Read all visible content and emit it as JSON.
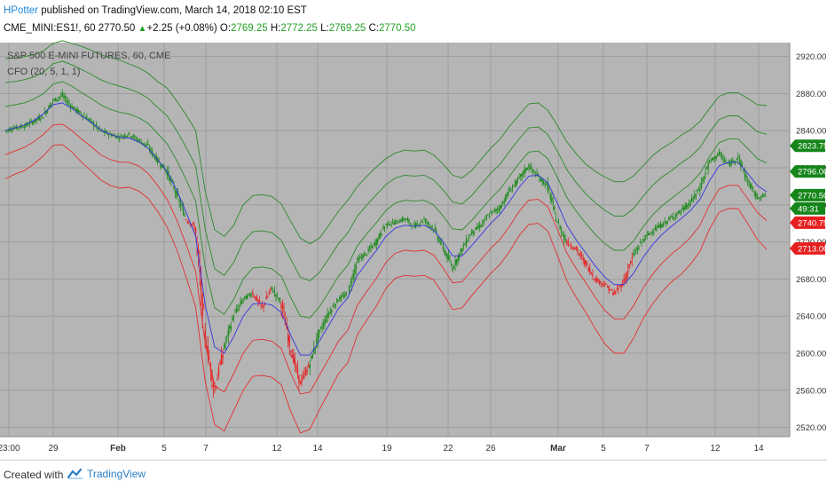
{
  "header": {
    "author": "HPotter",
    "published_text": " published on TradingView.com, March 14, 2018 02:10 EST",
    "symbol": "CME_MINI:ES1!, 60",
    "last": "2770.50",
    "change": "+2.25 (+0.08%)",
    "o_label": "O:",
    "o": "2769.25",
    "h_label": "H:",
    "h": "2772.25",
    "l_label": "L:",
    "l": "2769.25",
    "c_label": "C:",
    "c": "2770.50"
  },
  "footer": {
    "created_with": "Created with",
    "brand": "TradingView"
  },
  "colors": {
    "background": "#b5b5b5",
    "candle_up": "#1c8a1c",
    "candle_down": "#e62424",
    "basis": "#3535e0",
    "upper_bands": "#2c8a2c",
    "lower_bands": "#e23030",
    "grid": "#9d9d9d"
  },
  "chart_data": {
    "type": "line",
    "instrument_label": "S&P 500 E-MINI FUTURES, 60, CME",
    "indicator_label": "CFO (20, 5, 1, 1)",
    "ylim": [
      2510,
      2935
    ],
    "y_ticks": [
      "2920.00",
      "2880.00",
      "2840.00",
      "2800.00",
      "2760.00",
      "2720.00",
      "2680.00",
      "2640.00",
      "2600.00",
      "2560.00",
      "2520.00"
    ],
    "x_tick_labels": [
      "23:00",
      "29",
      "Feb",
      "5",
      "7",
      "12",
      "14",
      "19",
      "22",
      "26",
      "Mar",
      "5",
      "7",
      "12",
      "14"
    ],
    "price_tags": [
      {
        "label": "2823.75",
        "value": 2823.75,
        "kind": "upper"
      },
      {
        "label": "2796.00",
        "value": 2796.0,
        "kind": "upper"
      },
      {
        "label": "2770.50",
        "value": 2770.5,
        "kind": "upper"
      },
      {
        "label": "49:31",
        "value": 2758.0,
        "kind": "upper"
      },
      {
        "label": "2740.75",
        "value": 2740.75,
        "kind": "lower"
      },
      {
        "label": "2713.00",
        "value": 2713.0,
        "kind": "lower"
      }
    ],
    "series": [
      {
        "role": "close",
        "values": [
          2840,
          2843,
          2845,
          2850,
          2856,
          2872,
          2878,
          2866,
          2858,
          2850,
          2840,
          2836,
          2833,
          2836,
          2830,
          2823,
          2808,
          2796,
          2772,
          2745,
          2735,
          2620,
          2560,
          2606,
          2640,
          2658,
          2665,
          2649,
          2670,
          2655,
          2605,
          2568,
          2588,
          2622,
          2643,
          2658,
          2664,
          2700,
          2708,
          2720,
          2739,
          2741,
          2745,
          2737,
          2744,
          2735,
          2714,
          2692,
          2712,
          2730,
          2738,
          2751,
          2757,
          2775,
          2788,
          2802,
          2790,
          2780,
          2742,
          2720,
          2712,
          2697,
          2680,
          2674,
          2664,
          2677,
          2705,
          2722,
          2732,
          2738,
          2746,
          2753,
          2762,
          2778,
          2806,
          2815,
          2803,
          2812,
          2786,
          2768,
          2770.5
        ],
        "candle_colors": [
          "u",
          "u",
          "u",
          "u",
          "u",
          "u",
          "u",
          "u",
          "u",
          "u",
          "u",
          "u",
          "u",
          "u",
          "u",
          "u",
          "u",
          "u",
          "u",
          "d",
          "d",
          "d",
          "d",
          "u",
          "u",
          "u",
          "d",
          "d",
          "u",
          "d",
          "d",
          "d",
          "u",
          "u",
          "u",
          "u",
          "u",
          "u",
          "u",
          "u",
          "u",
          "u",
          "u",
          "u",
          "u",
          "u",
          "u",
          "u",
          "u",
          "u",
          "u",
          "u",
          "u",
          "u",
          "u",
          "u",
          "u",
          "u",
          "u",
          "d",
          "d",
          "d",
          "d",
          "d",
          "d",
          "d",
          "u",
          "u",
          "u",
          "u",
          "u",
          "u",
          "u",
          "u",
          "u",
          "u",
          "u",
          "u",
          "u",
          "u",
          "u"
        ]
      },
      {
        "role": "cfo-line",
        "values": [
          2840,
          2843,
          2846,
          2851,
          2858,
          2868,
          2870,
          2864,
          2856,
          2849,
          2841,
          2836,
          2833,
          2832,
          2828,
          2821,
          2809,
          2796,
          2776,
          2752,
          2726,
          2652,
          2607,
          2600,
          2618,
          2640,
          2653,
          2654,
          2652,
          2644,
          2619,
          2598,
          2598,
          2613,
          2630,
          2648,
          2660,
          2684,
          2698,
          2711,
          2726,
          2735,
          2738,
          2737,
          2738,
          2733,
          2720,
          2705,
          2705,
          2716,
          2728,
          2740,
          2750,
          2764,
          2779,
          2791,
          2792,
          2784,
          2762,
          2738,
          2722,
          2708,
          2694,
          2682,
          2674,
          2674,
          2686,
          2703,
          2717,
          2728,
          2737,
          2745,
          2754,
          2766,
          2786,
          2802,
          2806,
          2806,
          2794,
          2781,
          2774
        ]
      },
      {
        "role": "upper-1",
        "values": [
          2866,
          2868,
          2870,
          2874,
          2880,
          2890,
          2893,
          2888,
          2881,
          2875,
          2868,
          2863,
          2860,
          2858,
          2854,
          2848,
          2837,
          2826,
          2808,
          2787,
          2764,
          2693,
          2649,
          2642,
          2658,
          2680,
          2692,
          2693,
          2691,
          2683,
          2660,
          2640,
          2638,
          2650,
          2666,
          2683,
          2695,
          2716,
          2729,
          2741,
          2754,
          2762,
          2765,
          2764,
          2765,
          2760,
          2748,
          2734,
          2733,
          2743,
          2755,
          2767,
          2777,
          2791,
          2805,
          2817,
          2818,
          2810,
          2790,
          2768,
          2753,
          2740,
          2728,
          2718,
          2711,
          2711,
          2721,
          2736,
          2749,
          2759,
          2767,
          2775,
          2783,
          2794,
          2812,
          2827,
          2831,
          2831,
          2821,
          2810,
          2805
        ]
      },
      {
        "role": "upper-2",
        "values": [
          2892,
          2893,
          2895,
          2898,
          2903,
          2912,
          2915,
          2911,
          2906,
          2901,
          2895,
          2891,
          2888,
          2885,
          2881,
          2875,
          2865,
          2856,
          2840,
          2822,
          2802,
          2734,
          2691,
          2684,
          2698,
          2720,
          2731,
          2732,
          2730,
          2722,
          2701,
          2682,
          2678,
          2687,
          2702,
          2718,
          2730,
          2748,
          2760,
          2771,
          2782,
          2789,
          2792,
          2791,
          2792,
          2787,
          2776,
          2763,
          2761,
          2770,
          2782,
          2794,
          2804,
          2818,
          2831,
          2843,
          2844,
          2836,
          2818,
          2798,
          2784,
          2772,
          2762,
          2754,
          2748,
          2748,
          2756,
          2769,
          2781,
          2790,
          2797,
          2805,
          2812,
          2822,
          2838,
          2852,
          2856,
          2856,
          2848,
          2839,
          2836
        ]
      },
      {
        "role": "upper-3",
        "values": [
          2918,
          2918,
          2920,
          2922,
          2926,
          2934,
          2937,
          2934,
          2931,
          2927,
          2922,
          2919,
          2916,
          2912,
          2908,
          2902,
          2893,
          2886,
          2872,
          2857,
          2840,
          2775,
          2733,
          2726,
          2738,
          2760,
          2770,
          2771,
          2769,
          2761,
          2742,
          2724,
          2718,
          2724,
          2738,
          2753,
          2765,
          2780,
          2791,
          2801,
          2810,
          2816,
          2819,
          2818,
          2819,
          2814,
          2804,
          2792,
          2789,
          2797,
          2809,
          2821,
          2831,
          2845,
          2857,
          2869,
          2870,
          2862,
          2846,
          2828,
          2815,
          2804,
          2796,
          2790,
          2785,
          2785,
          2791,
          2802,
          2813,
          2821,
          2827,
          2835,
          2841,
          2850,
          2864,
          2877,
          2881,
          2881,
          2875,
          2868,
          2867
        ]
      },
      {
        "role": "lower-1",
        "values": [
          2814,
          2818,
          2822,
          2828,
          2836,
          2846,
          2847,
          2840,
          2831,
          2823,
          2814,
          2809,
          2806,
          2806,
          2802,
          2794,
          2781,
          2766,
          2744,
          2717,
          2688,
          2611,
          2565,
          2558,
          2578,
          2600,
          2614,
          2615,
          2613,
          2605,
          2578,
          2556,
          2558,
          2576,
          2594,
          2613,
          2625,
          2652,
          2667,
          2681,
          2698,
          2708,
          2711,
          2710,
          2711,
          2706,
          2692,
          2676,
          2677,
          2689,
          2701,
          2713,
          2723,
          2737,
          2753,
          2765,
          2766,
          2758,
          2734,
          2708,
          2691,
          2676,
          2660,
          2646,
          2637,
          2637,
          2651,
          2670,
          2685,
          2697,
          2707,
          2715,
          2725,
          2738,
          2760,
          2777,
          2781,
          2781,
          2767,
          2752,
          2743
        ]
      },
      {
        "role": "lower-2",
        "values": [
          2788,
          2793,
          2797,
          2804,
          2813,
          2824,
          2825,
          2817,
          2806,
          2797,
          2787,
          2781,
          2778,
          2779,
          2775,
          2767,
          2753,
          2736,
          2712,
          2682,
          2650,
          2570,
          2523,
          2516,
          2538,
          2560,
          2575,
          2576,
          2574,
          2566,
          2537,
          2514,
          2518,
          2539,
          2558,
          2578,
          2590,
          2620,
          2636,
          2651,
          2670,
          2681,
          2684,
          2683,
          2684,
          2679,
          2664,
          2647,
          2649,
          2662,
          2674,
          2686,
          2696,
          2710,
          2727,
          2739,
          2740,
          2732,
          2706,
          2678,
          2660,
          2644,
          2626,
          2610,
          2600,
          2600,
          2616,
          2637,
          2653,
          2666,
          2677,
          2685,
          2696,
          2710,
          2734,
          2752,
          2756,
          2756,
          2740,
          2723,
          2712
        ]
      }
    ]
  }
}
